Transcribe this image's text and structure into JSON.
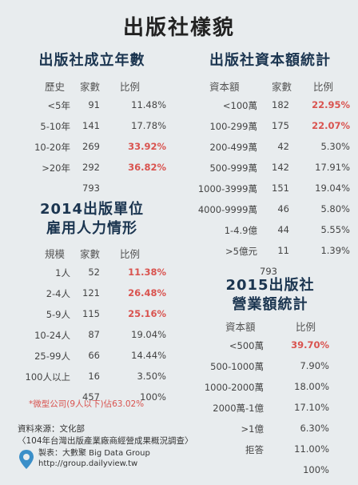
{
  "title": "出版社樣貌",
  "sec1": {
    "title": "出版社成立年數",
    "headers": [
      "歷史",
      "家數",
      "比例"
    ],
    "rows": [
      {
        "label": "<5年",
        "count": "91",
        "pct": "11.48%",
        "hl": false
      },
      {
        "label": "5-10年",
        "count": "141",
        "pct": "17.78%",
        "hl": false
      },
      {
        "label": "10-20年",
        "count": "269",
        "pct": "33.92%",
        "hl": true
      },
      {
        "label": ">20年",
        "count": "292",
        "pct": "36.82%",
        "hl": true
      }
    ],
    "total": "793"
  },
  "sec2": {
    "title_line1": "2014出版單位",
    "title_line2": "雇用人力情形",
    "headers": [
      "規模",
      "家數",
      "比例"
    ],
    "rows": [
      {
        "label": "1人",
        "count": "52",
        "pct": "11.38%",
        "hl": true
      },
      {
        "label": "2-4人",
        "count": "121",
        "pct": "26.48%",
        "hl": true
      },
      {
        "label": "5-9人",
        "count": "115",
        "pct": "25.16%",
        "hl": true
      },
      {
        "label": "10-24人",
        "count": "87",
        "pct": "19.04%",
        "hl": false
      },
      {
        "label": "25-99人",
        "count": "66",
        "pct": "14.44%",
        "hl": false
      },
      {
        "label": "100人以上",
        "count": "16",
        "pct": "3.50%",
        "hl": false
      }
    ],
    "total_count": "457",
    "total_pct": "100%",
    "note": "*微型公司(9人以下)佔63.02%"
  },
  "sec3": {
    "title": "出版社資本額統計",
    "headers": [
      "資本額",
      "家數",
      "比例"
    ],
    "rows": [
      {
        "label": "<100萬",
        "count": "182",
        "pct": "22.95%",
        "hl": true
      },
      {
        "label": "100-299萬",
        "count": "175",
        "pct": "22.07%",
        "hl": true
      },
      {
        "label": "200-499萬",
        "count": "42",
        "pct": "5.30%",
        "hl": false
      },
      {
        "label": "500-999萬",
        "count": "142",
        "pct": "17.91%",
        "hl": false
      },
      {
        "label": "1000-3999萬",
        "count": "151",
        "pct": "19.04%",
        "hl": false
      },
      {
        "label": "4000-9999萬",
        "count": "46",
        "pct": "5.80%",
        "hl": false
      },
      {
        "label": "1-4.9億",
        "count": "44",
        "pct": "5.55%",
        "hl": false
      },
      {
        "label": ">5億元",
        "count": "11",
        "pct": "1.39%",
        "hl": false
      }
    ],
    "total": "793"
  },
  "sec4": {
    "title_line1": "2015出版社",
    "title_line2": "營業額統計",
    "headers": [
      "資本額",
      "比例"
    ],
    "rows": [
      {
        "label": "<500萬",
        "pct": "39.70%",
        "hl": true
      },
      {
        "label": "500-1000萬",
        "pct": "7.90%",
        "hl": false
      },
      {
        "label": "1000-2000萬",
        "pct": "18.00%",
        "hl": false
      },
      {
        "label": "2000萬-1億",
        "pct": "17.10%",
        "hl": false
      },
      {
        "label": ">1億",
        "pct": "6.30%",
        "hl": false
      },
      {
        "label": "拒答",
        "pct": "11.00%",
        "hl": false
      }
    ],
    "total": "100%"
  },
  "source": {
    "line1": "資料來源：文化部",
    "line2": "〈104年台灣出版產業廠商經營成果概況調查〉"
  },
  "footer": {
    "line1": "製表：大數聚 Big Data Group",
    "line2": "http://group.dailyview.tw"
  },
  "colors": {
    "highlight": "#d9534f",
    "heading": "#1b3550"
  }
}
